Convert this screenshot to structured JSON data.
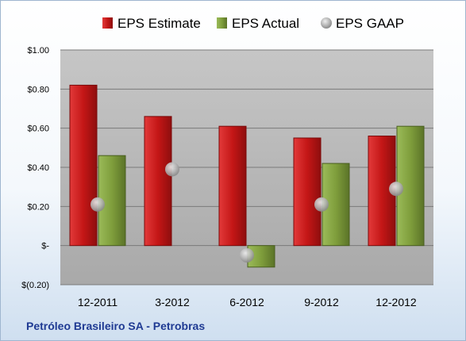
{
  "chart_data": {
    "type": "bar",
    "title": "",
    "categories": [
      "12-2011",
      "3-2012",
      "6-2012",
      "9-2012",
      "12-2012"
    ],
    "series": [
      {
        "name": "EPS Estimate",
        "values": [
          0.82,
          0.66,
          0.61,
          0.55,
          0.56
        ],
        "color": "#cc1f1f",
        "mark": "bar"
      },
      {
        "name": "EPS Actual",
        "values": [
          0.46,
          null,
          -0.11,
          0.42,
          0.61
        ],
        "color": "#7f9e3c",
        "mark": "bar"
      },
      {
        "name": "EPS GAAP",
        "values": [
          0.21,
          0.39,
          -0.05,
          0.21,
          0.29
        ],
        "color": "#b0b0b0",
        "mark": "circle"
      }
    ],
    "ylim": [
      -0.2,
      1.0
    ],
    "yticks": [
      -0.2,
      0,
      0.2,
      0.4,
      0.6,
      0.8,
      1.0
    ],
    "ytick_labels": [
      "$(0.20)",
      "$-",
      "$0.20",
      "$0.40",
      "$0.60",
      "$0.80",
      "$1.00"
    ],
    "grid": true,
    "legend": "top",
    "xlabel": "",
    "ylabel": ""
  },
  "footer": {
    "company": "Petróleo Brasileiro SA - Petrobras"
  }
}
